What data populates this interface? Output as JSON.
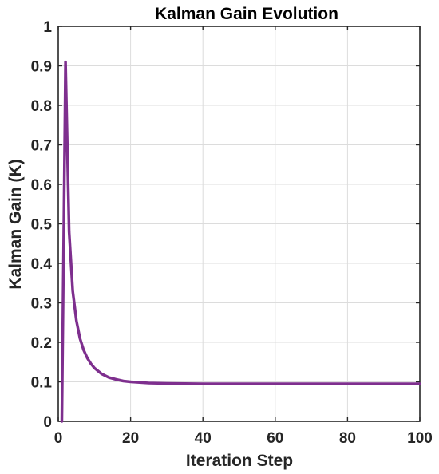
{
  "chart_data": {
    "type": "line",
    "title": "Kalman Gain Evolution",
    "xlabel": "Iteration Step",
    "ylabel": "Kalman Gain (K)",
    "xlim": [
      0,
      100
    ],
    "ylim": [
      0,
      1
    ],
    "xticks": [
      0,
      20,
      40,
      60,
      80,
      100
    ],
    "yticks": [
      0,
      0.1,
      0.2,
      0.3,
      0.4,
      0.5,
      0.6,
      0.7,
      0.8,
      0.9,
      1
    ],
    "xtick_labels": [
      "0",
      "20",
      "40",
      "60",
      "80",
      "100"
    ],
    "ytick_labels": [
      "0",
      "0.1",
      "0.2",
      "0.3",
      "0.4",
      "0.5",
      "0.6",
      "0.7",
      "0.8",
      "0.9",
      "1"
    ],
    "grid": true,
    "box": true,
    "series": [
      {
        "color": "#7E2F8E",
        "x": [
          1,
          2,
          3,
          4,
          5,
          6,
          7,
          8,
          9,
          10,
          12,
          14,
          16,
          18,
          20,
          25,
          30,
          40,
          50,
          60,
          70,
          80,
          90,
          100
        ],
        "y": [
          0,
          0.91,
          0.48,
          0.33,
          0.255,
          0.21,
          0.181,
          0.161,
          0.146,
          0.135,
          0.12,
          0.111,
          0.106,
          0.102,
          0.1,
          0.097,
          0.096,
          0.095,
          0.095,
          0.095,
          0.095,
          0.095,
          0.095,
          0.095
        ]
      }
    ]
  }
}
